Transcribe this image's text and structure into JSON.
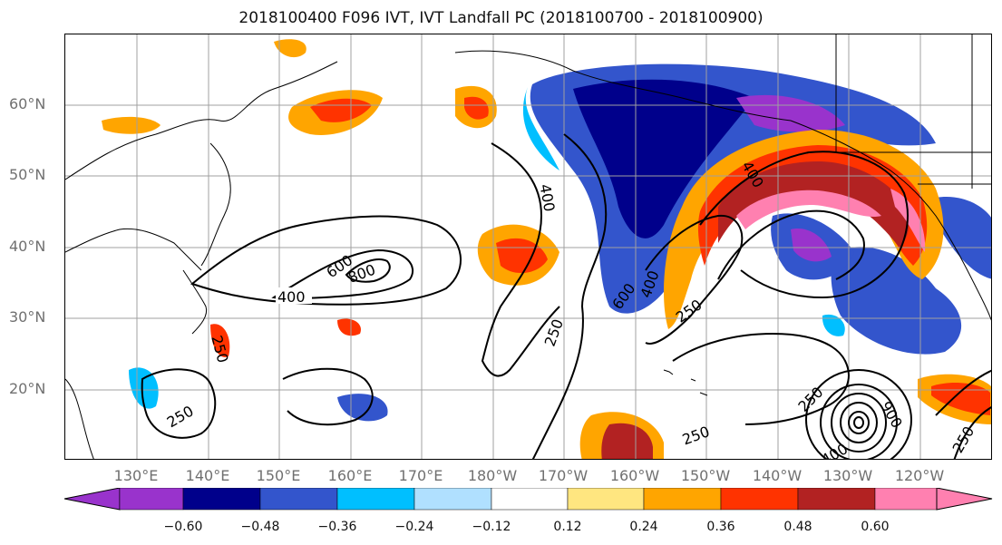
{
  "title": "2018100400 F096 IVT, IVT Landfall PC (2018100700 - 2018100900)",
  "lat_labels": [
    "60°N",
    "50°N",
    "40°N",
    "30°N",
    "20°N"
  ],
  "lon_labels": [
    "130°E",
    "140°E",
    "150°E",
    "160°E",
    "170°E",
    "180°W",
    "170°W",
    "160°W",
    "150°W",
    "140°W",
    "130°W",
    "120°W"
  ],
  "contour_labels": [
    "400",
    "600",
    "800",
    "400",
    "250",
    "250",
    "400",
    "600",
    "400",
    "250",
    "250",
    "400",
    "250",
    "900",
    "250",
    "250"
  ],
  "colorbar": {
    "ticks": [
      "−0.60",
      "−0.48",
      "−0.36",
      "−0.24",
      "−0.12",
      "0.12",
      "0.24",
      "0.36",
      "0.48",
      "0.60"
    ],
    "colors": [
      "#9933cc",
      "#00008b",
      "#3355cc",
      "#00bfff",
      "#b0e0ff",
      "#ffffff",
      "#ffe680",
      "#ffa500",
      "#ff3300",
      "#b22222",
      "#ff80b0"
    ]
  }
}
